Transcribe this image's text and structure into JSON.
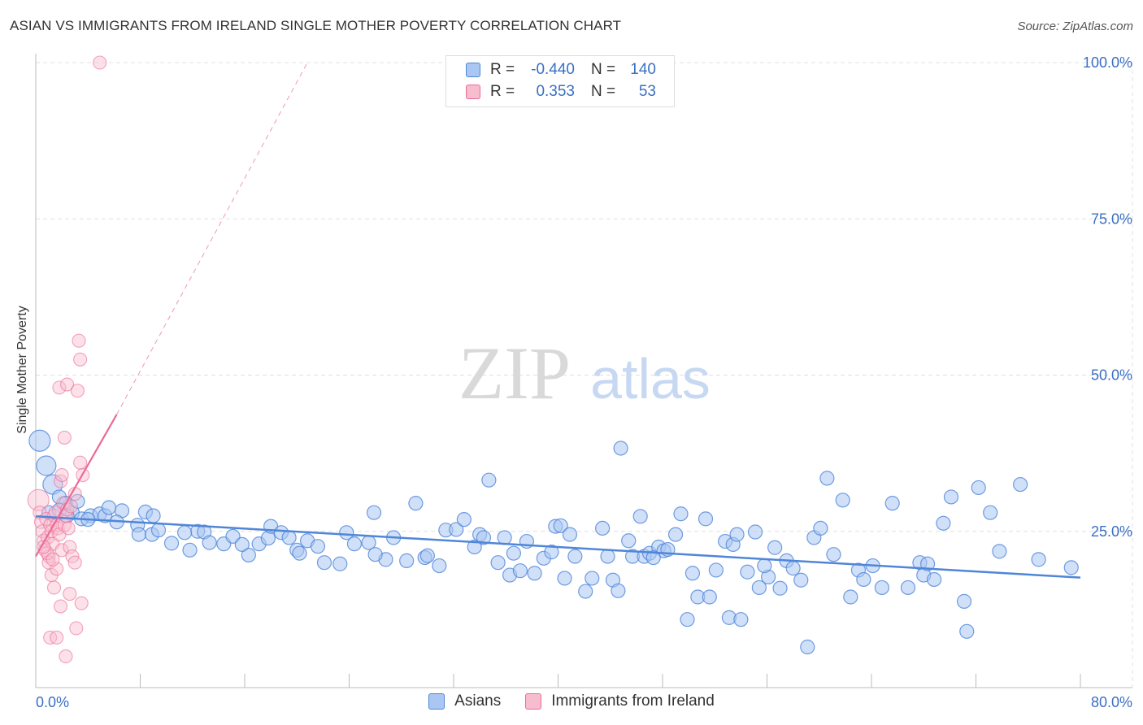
{
  "title": "ASIAN VS IMMIGRANTS FROM IRELAND SINGLE MOTHER POVERTY CORRELATION CHART",
  "source": "Source: ZipAtlas.com",
  "watermark": {
    "zip": "ZIP",
    "atlas": "atlas"
  },
  "colors": {
    "blue": "#4f86d8",
    "blue_fill": "#aac6f2",
    "pink": "#ea6b97",
    "pink_fill": "#f8bccf",
    "grid": "#e0e0e0",
    "tick_text": "#3a6fc4"
  },
  "legend": {
    "r_label": "R =",
    "n_label": "N =",
    "rows": [
      {
        "r": "-0.440",
        "n": "140"
      },
      {
        "r": "0.353",
        "n": "53"
      }
    ]
  },
  "chart_data": {
    "type": "scatter",
    "title": "ASIAN VS IMMIGRANTS FROM IRELAND SINGLE MOTHER POVERTY CORRELATION CHART",
    "xlabel": "",
    "ylabel": "Single Mother Poverty",
    "xlim": [
      0,
      80
    ],
    "ylim": [
      0,
      100
    ],
    "x_tick_labels": [
      "0.0%",
      "80.0%"
    ],
    "y_tick_values": [
      25,
      50,
      75,
      100
    ],
    "y_tick_labels": [
      "25.0%",
      "50.0%",
      "75.0%",
      "100.0%"
    ],
    "grid": true,
    "series": [
      {
        "name": "Asians",
        "color": "#4f86d8",
        "r": -0.44,
        "n": 140,
        "trend": {
          "x": [
            0,
            80
          ],
          "y": [
            27.4,
            17.6
          ],
          "style": "solid"
        },
        "points": [
          [
            0.3,
            39.5
          ],
          [
            0.8,
            35.5
          ],
          [
            1.3,
            32.5
          ],
          [
            1.8,
            30.5
          ],
          [
            2.3,
            29.5
          ],
          [
            2.8,
            28.0
          ],
          [
            1.0,
            28.0
          ],
          [
            3.5,
            27.0
          ],
          [
            4.2,
            27.5
          ],
          [
            4.9,
            27.8
          ],
          [
            3.2,
            29.8
          ],
          [
            5.3,
            27.5
          ],
          [
            6.6,
            28.3
          ],
          [
            7.8,
            26.0
          ],
          [
            8.4,
            28.1
          ],
          [
            9.0,
            27.5
          ],
          [
            7.9,
            24.5
          ],
          [
            8.9,
            24.5
          ],
          [
            9.4,
            25.2
          ],
          [
            10.4,
            23.1
          ],
          [
            11.8,
            22.0
          ],
          [
            12.4,
            25.0
          ],
          [
            12.9,
            24.9
          ],
          [
            11.4,
            24.8
          ],
          [
            13.3,
            23.2
          ],
          [
            14.4,
            23.0
          ],
          [
            15.1,
            24.2
          ],
          [
            16.3,
            21.2
          ],
          [
            17.1,
            23.0
          ],
          [
            17.8,
            23.9
          ],
          [
            18.0,
            25.8
          ],
          [
            18.8,
            24.8
          ],
          [
            19.4,
            24.0
          ],
          [
            20.0,
            22.0
          ],
          [
            20.8,
            23.5
          ],
          [
            21.6,
            22.6
          ],
          [
            22.1,
            20.0
          ],
          [
            23.3,
            19.8
          ],
          [
            23.8,
            24.8
          ],
          [
            24.4,
            23.0
          ],
          [
            25.5,
            23.2
          ],
          [
            25.9,
            28.0
          ],
          [
            26.8,
            20.5
          ],
          [
            27.4,
            24.0
          ],
          [
            28.4,
            20.3
          ],
          [
            29.1,
            29.5
          ],
          [
            29.8,
            20.8
          ],
          [
            30.9,
            19.5
          ],
          [
            31.4,
            25.2
          ],
          [
            32.2,
            25.3
          ],
          [
            32.8,
            26.9
          ],
          [
            33.6,
            22.5
          ],
          [
            34.0,
            24.5
          ],
          [
            34.3,
            24.0
          ],
          [
            34.7,
            33.2
          ],
          [
            35.4,
            20.0
          ],
          [
            35.9,
            24.0
          ],
          [
            36.3,
            18.0
          ],
          [
            37.1,
            18.7
          ],
          [
            37.6,
            23.4
          ],
          [
            38.2,
            18.3
          ],
          [
            38.9,
            20.7
          ],
          [
            39.5,
            21.7
          ],
          [
            39.8,
            25.8
          ],
          [
            40.2,
            25.9
          ],
          [
            40.5,
            17.5
          ],
          [
            40.9,
            24.5
          ],
          [
            41.3,
            21.0
          ],
          [
            42.1,
            15.4
          ],
          [
            42.6,
            17.5
          ],
          [
            43.4,
            25.5
          ],
          [
            43.8,
            21.0
          ],
          [
            44.2,
            17.2
          ],
          [
            44.6,
            15.5
          ],
          [
            44.8,
            38.3
          ],
          [
            45.4,
            23.5
          ],
          [
            45.7,
            21.0
          ],
          [
            46.3,
            27.4
          ],
          [
            46.6,
            21.0
          ],
          [
            47.0,
            21.5
          ],
          [
            47.7,
            22.5
          ],
          [
            48.1,
            21.9
          ],
          [
            48.4,
            22.1
          ],
          [
            49.0,
            24.5
          ],
          [
            49.4,
            27.8
          ],
          [
            49.9,
            10.9
          ],
          [
            50.3,
            18.3
          ],
          [
            50.7,
            14.5
          ],
          [
            51.3,
            27.0
          ],
          [
            51.6,
            14.5
          ],
          [
            52.1,
            18.8
          ],
          [
            52.8,
            23.4
          ],
          [
            53.1,
            11.2
          ],
          [
            53.4,
            22.9
          ],
          [
            53.7,
            24.5
          ],
          [
            54.0,
            10.9
          ],
          [
            54.5,
            18.5
          ],
          [
            55.1,
            24.9
          ],
          [
            55.4,
            16.0
          ],
          [
            56.1,
            17.7
          ],
          [
            56.6,
            22.4
          ],
          [
            57.0,
            15.9
          ],
          [
            57.5,
            20.3
          ],
          [
            58.0,
            19.1
          ],
          [
            58.6,
            17.2
          ],
          [
            59.1,
            6.5
          ],
          [
            59.6,
            24.0
          ],
          [
            60.1,
            25.5
          ],
          [
            60.6,
            33.5
          ],
          [
            61.1,
            21.3
          ],
          [
            61.8,
            30.0
          ],
          [
            62.4,
            14.5
          ],
          [
            63.0,
            18.8
          ],
          [
            63.4,
            17.3
          ],
          [
            64.1,
            19.5
          ],
          [
            64.8,
            16.0
          ],
          [
            65.6,
            29.5
          ],
          [
            66.8,
            16.0
          ],
          [
            67.7,
            20.0
          ],
          [
            68.0,
            18.0
          ],
          [
            68.3,
            19.8
          ],
          [
            68.8,
            17.3
          ],
          [
            69.5,
            26.3
          ],
          [
            70.1,
            30.5
          ],
          [
            71.1,
            13.8
          ],
          [
            71.3,
            9.0
          ],
          [
            72.2,
            32.0
          ],
          [
            73.1,
            28.0
          ],
          [
            73.8,
            21.8
          ],
          [
            75.4,
            32.5
          ],
          [
            76.8,
            20.5
          ],
          [
            79.3,
            19.2
          ],
          [
            1.8,
            28.4
          ],
          [
            2.4,
            27.5
          ],
          [
            4.0,
            26.9
          ],
          [
            5.6,
            28.8
          ],
          [
            6.2,
            26.5
          ],
          [
            15.8,
            22.9
          ],
          [
            20.2,
            21.5
          ],
          [
            26.0,
            21.3
          ],
          [
            30.0,
            21.1
          ],
          [
            36.6,
            21.5
          ],
          [
            47.3,
            20.8
          ],
          [
            55.8,
            19.5
          ]
        ]
      },
      {
        "name": "Immigrants from Ireland",
        "color": "#ea6b97",
        "r": 0.353,
        "n": 53,
        "trend_solid": {
          "x": [
            0,
            6.2
          ],
          "y": [
            21.0,
            43.7
          ]
        },
        "trend_dashed": {
          "x": [
            6.2,
            20.8
          ],
          "y": [
            43.7,
            100
          ]
        },
        "points": [
          [
            0.2,
            30.0
          ],
          [
            0.3,
            28.0
          ],
          [
            0.4,
            26.5
          ],
          [
            0.5,
            25.0
          ],
          [
            0.6,
            23.5
          ],
          [
            0.7,
            22.0
          ],
          [
            0.8,
            27.0
          ],
          [
            0.9,
            24.0
          ],
          [
            1.0,
            21.0
          ],
          [
            1.1,
            26.0
          ],
          [
            1.2,
            25.0
          ],
          [
            1.3,
            23.0
          ],
          [
            1.4,
            27.5
          ],
          [
            1.5,
            28.0
          ],
          [
            1.6,
            26.0
          ],
          [
            1.7,
            25.5
          ],
          [
            1.8,
            24.5
          ],
          [
            1.9,
            33.0
          ],
          [
            2.0,
            34.0
          ],
          [
            2.1,
            29.5
          ],
          [
            2.2,
            26.0
          ],
          [
            2.3,
            27.5
          ],
          [
            2.4,
            28.5
          ],
          [
            2.5,
            25.5
          ],
          [
            1.0,
            20.0
          ],
          [
            1.2,
            18.0
          ],
          [
            1.4,
            16.0
          ],
          [
            1.6,
            19.0
          ],
          [
            2.0,
            22.0
          ],
          [
            2.6,
            22.5
          ],
          [
            2.8,
            21.0
          ],
          [
            3.0,
            20.0
          ],
          [
            3.4,
            36.0
          ],
          [
            3.6,
            34.0
          ],
          [
            1.8,
            48.0
          ],
          [
            2.4,
            48.5
          ],
          [
            3.2,
            47.5
          ],
          [
            3.4,
            52.5
          ],
          [
            3.3,
            55.5
          ],
          [
            2.2,
            40.0
          ],
          [
            2.7,
            29.0
          ],
          [
            3.0,
            31.0
          ],
          [
            1.1,
            8.0
          ],
          [
            1.6,
            8.0
          ],
          [
            2.3,
            5.0
          ],
          [
            3.1,
            9.5
          ],
          [
            3.5,
            13.5
          ],
          [
            2.6,
            15.0
          ],
          [
            1.9,
            13.0
          ],
          [
            0.9,
            21.5
          ],
          [
            1.3,
            20.5
          ],
          [
            0.6,
            22.5
          ],
          [
            4.9,
            100.0
          ]
        ]
      }
    ]
  }
}
